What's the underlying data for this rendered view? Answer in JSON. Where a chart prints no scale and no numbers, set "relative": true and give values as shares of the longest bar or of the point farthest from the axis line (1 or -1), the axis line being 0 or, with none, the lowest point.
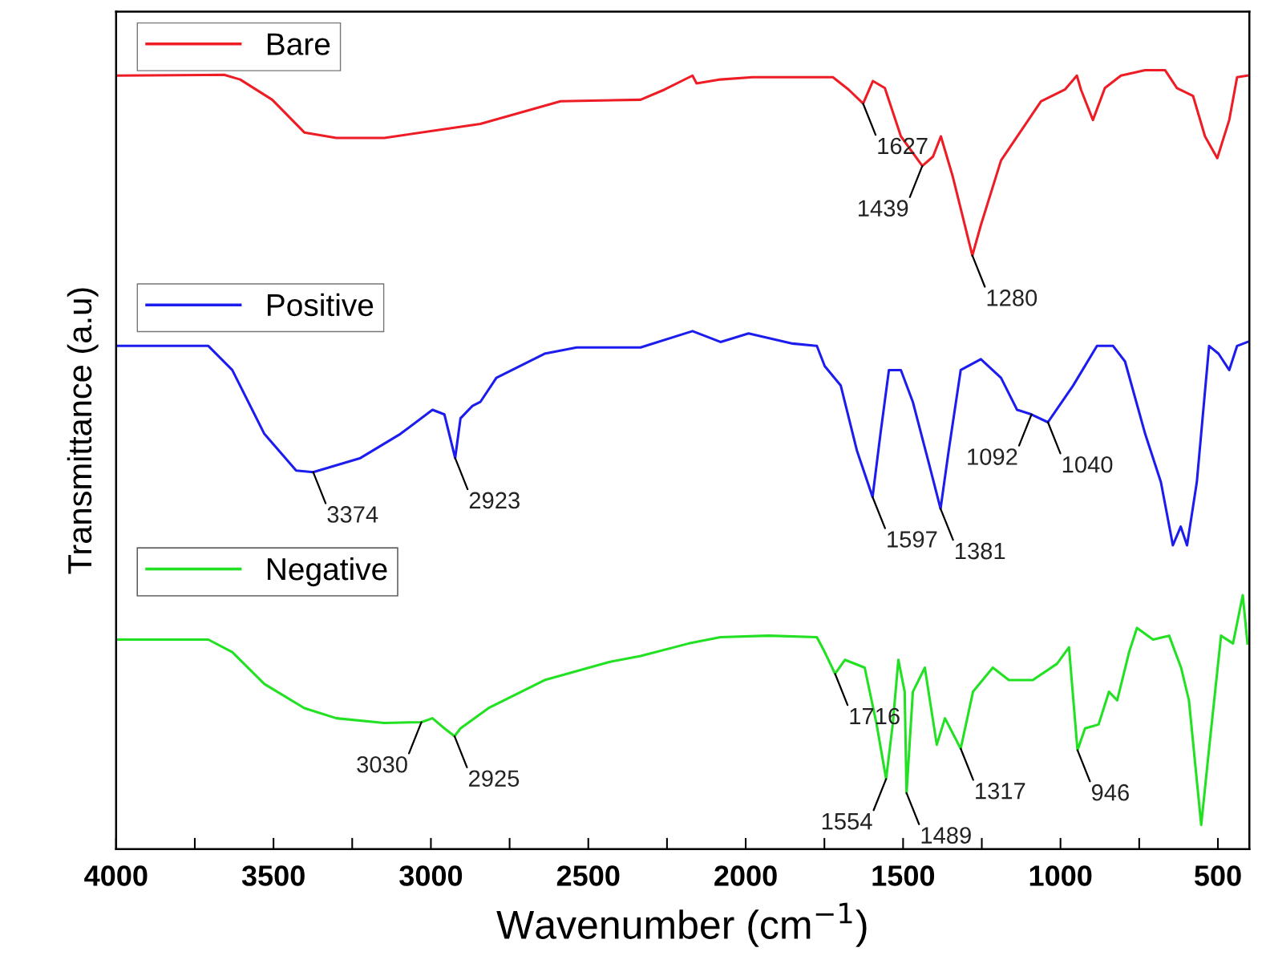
{
  "chart_data": {
    "type": "line",
    "relative": true,
    "xlabel": "Wavenumber (cm$^{−1}$)",
    "ylabel": "Transmittance (a.u)",
    "xlim": [
      4000,
      400
    ],
    "xticks": [
      4000,
      {
        "value": 3750,
        "label": null
      },
      3500,
      {
        "value": 3250,
        "label": null
      },
      3000,
      {
        "value": 2750,
        "label": null
      },
      2500,
      {
        "value": 2250,
        "label": null
      },
      2000,
      {
        "value": 1750,
        "label": null
      },
      1500,
      {
        "value": 1250,
        "label": null
      },
      1000,
      {
        "value": 750,
        "label": null
      },
      500
    ],
    "legend": "left",
    "grid": false,
    "series": [
      {
        "name": "Bare",
        "color": "#ee1c25",
        "x": [
          4000,
          3657,
          3606,
          3504,
          3402,
          3300,
          3148,
          2843,
          2588,
          2334,
          2258,
          2169,
          2156,
          2080,
          1978,
          1825,
          1723,
          1673,
          1627,
          1596,
          1558,
          1507,
          1439,
          1405,
          1380,
          1342,
          1280,
          1253,
          1189,
          1062,
          986,
          948,
          935,
          897,
          859,
          808,
          731,
          668,
          630,
          579,
          541,
          502,
          464,
          439,
          406
        ],
        "values": [
          0.993,
          0.994,
          0.988,
          0.962,
          0.92,
          0.913,
          0.913,
          0.931,
          0.96,
          0.962,
          0.975,
          0.993,
          0.983,
          0.988,
          0.991,
          0.991,
          0.991,
          0.975,
          0.957,
          0.986,
          0.977,
          0.915,
          0.877,
          0.889,
          0.915,
          0.863,
          0.762,
          0.801,
          0.884,
          0.96,
          0.975,
          0.993,
          0.975,
          0.936,
          0.977,
          0.993,
          1.0,
          1.0,
          0.977,
          0.967,
          0.915,
          0.887,
          0.936,
          0.991,
          0.993
        ]
      },
      {
        "name": "Positive",
        "color": "#1c1cee",
        "x": [
          4000,
          3707,
          3631,
          3529,
          3428,
          3374,
          3224,
          3097,
          2995,
          2957,
          2923,
          2906,
          2868,
          2843,
          2792,
          2639,
          2537,
          2334,
          2169,
          2080,
          1991,
          1851,
          1774,
          1749,
          1698,
          1647,
          1597,
          1572,
          1545,
          1507,
          1469,
          1418,
          1381,
          1355,
          1317,
          1253,
          1189,
          1138,
          1092,
          1040,
          960,
          884,
          833,
          795,
          731,
          681,
          643,
          618,
          598,
          567,
          528,
          498,
          464,
          439,
          406
        ],
        "values": [
          0.646,
          0.646,
          0.615,
          0.533,
          0.486,
          0.484,
          0.502,
          0.533,
          0.564,
          0.558,
          0.502,
          0.553,
          0.569,
          0.574,
          0.605,
          0.636,
          0.644,
          0.644,
          0.665,
          0.651,
          0.662,
          0.649,
          0.646,
          0.62,
          0.595,
          0.512,
          0.452,
          0.533,
          0.615,
          0.615,
          0.574,
          0.495,
          0.437,
          0.512,
          0.615,
          0.629,
          0.605,
          0.564,
          0.558,
          0.548,
          0.595,
          0.646,
          0.646,
          0.626,
          0.533,
          0.471,
          0.39,
          0.414,
          0.39,
          0.471,
          0.646,
          0.636,
          0.615,
          0.646,
          0.651
        ]
      },
      {
        "name": "Negative",
        "color": "#22e022",
        "x": [
          4000,
          3707,
          3631,
          3529,
          3402,
          3300,
          3148,
          3030,
          2995,
          2957,
          2925,
          2906,
          2817,
          2639,
          2436,
          2334,
          2181,
          2080,
          1927,
          1774,
          1749,
          1716,
          1685,
          1622,
          1584,
          1554,
          1533,
          1515,
          1495,
          1489,
          1469,
          1431,
          1393,
          1367,
          1317,
          1278,
          1215,
          1164,
          1088,
          1011,
          973,
          946,
          922,
          879,
          846,
          820,
          782,
          757,
          706,
          655,
          617,
          592,
          553,
          528,
          490,
          452,
          421,
          406
        ],
        "values": [
          0.269,
          0.269,
          0.253,
          0.212,
          0.181,
          0.168,
          0.162,
          0.163,
          0.168,
          0.155,
          0.145,
          0.155,
          0.181,
          0.217,
          0.24,
          0.248,
          0.264,
          0.272,
          0.274,
          0.272,
          0.253,
          0.225,
          0.243,
          0.233,
          0.16,
          0.09,
          0.16,
          0.243,
          0.202,
          0.072,
          0.202,
          0.233,
          0.134,
          0.168,
          0.129,
          0.202,
          0.233,
          0.217,
          0.217,
          0.238,
          0.259,
          0.127,
          0.155,
          0.16,
          0.202,
          0.191,
          0.253,
          0.284,
          0.269,
          0.274,
          0.233,
          0.191,
          0.031,
          0.129,
          0.274,
          0.264,
          0.326,
          0.264
        ]
      }
    ],
    "annotations": [
      {
        "text": "1627",
        "x": 1627,
        "y": 0.957
      },
      {
        "text": "1439",
        "x": 1439,
        "y": 0.877
      },
      {
        "text": "1280",
        "x": 1280,
        "y": 0.762
      },
      {
        "text": "3374",
        "x": 3374,
        "y": 0.484
      },
      {
        "text": "2923",
        "x": 2923,
        "y": 0.502
      },
      {
        "text": "1597",
        "x": 1597,
        "y": 0.452
      },
      {
        "text": "1381",
        "x": 1381,
        "y": 0.437
      },
      {
        "text": "1092",
        "x": 1092,
        "y": 0.558
      },
      {
        "text": "1040",
        "x": 1040,
        "y": 0.548
      },
      {
        "text": "3030",
        "x": 3030,
        "y": 0.163
      },
      {
        "text": "2925",
        "x": 2925,
        "y": 0.145
      },
      {
        "text": "1716",
        "x": 1716,
        "y": 0.225
      },
      {
        "text": "1554",
        "x": 1554,
        "y": 0.09
      },
      {
        "text": "1489",
        "x": 1489,
        "y": 0.072
      },
      {
        "text": "1317",
        "x": 1317,
        "y": 0.129
      },
      {
        "text": "946",
        "x": 946,
        "y": 0.127
      }
    ]
  }
}
